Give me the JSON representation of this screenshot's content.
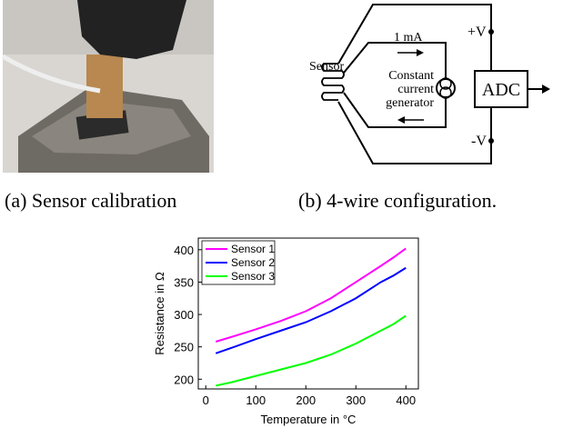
{
  "figure": {
    "caption_a": "(a) Sensor calibration",
    "caption_b": "(b) 4-wire configuration.",
    "diagram": {
      "sensor": "Sensor",
      "current": "1 mA",
      "generator": [
        "Constant",
        "current",
        "generator"
      ],
      "adc": "ADC",
      "plus_v": "+V",
      "minus_v": "-V"
    }
  },
  "chart_data": {
    "type": "line",
    "x_label": "Temperature in °C",
    "y_label": "Resistance in Ω",
    "x": [
      20,
      50,
      100,
      150,
      200,
      250,
      300,
      350,
      375,
      400
    ],
    "series": [
      {
        "name": "Sensor 1",
        "color": "#ff00ff",
        "values": [
          258,
          265,
          277,
          290,
          305,
          325,
          350,
          375,
          388,
          402
        ]
      },
      {
        "name": "Sensor 2",
        "color": "#0000ff",
        "values": [
          240,
          248,
          262,
          275,
          288,
          305,
          325,
          350,
          360,
          372
        ]
      },
      {
        "name": "Sensor 3",
        "color": "#00ff00",
        "values": [
          190,
          195,
          205,
          215,
          225,
          238,
          255,
          275,
          285,
          298
        ]
      }
    ],
    "xlim": [
      -15,
      425
    ],
    "ylim": [
      185,
      418
    ],
    "xticks": [
      0,
      100,
      200,
      300,
      400
    ],
    "yticks": [
      200,
      250,
      300,
      350,
      400
    ],
    "legend": "upper-left"
  }
}
